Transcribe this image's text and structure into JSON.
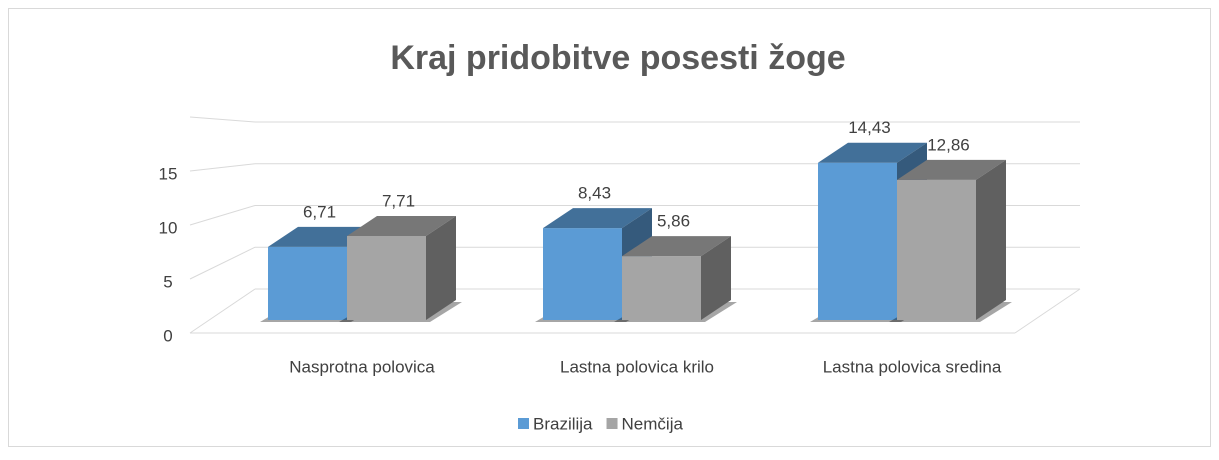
{
  "chart_data": {
    "type": "bar3d",
    "title": "Kraj pridobitve posesti žoge",
    "categories": [
      "Nasprotna polovica",
      "Lastna polovica krilo",
      "Lastna polovica sredina"
    ],
    "series": [
      {
        "name": "Brazilija",
        "color": "#5b9bd5",
        "values": [
          6.71,
          8.43,
          14.43
        ],
        "value_labels": [
          "6,71",
          "8,43",
          "14,43"
        ]
      },
      {
        "name": "Nemčija",
        "color": "#a5a5a5",
        "values": [
          7.71,
          5.86,
          12.86
        ],
        "value_labels": [
          "7,71",
          "5,86",
          "12,86"
        ]
      }
    ],
    "ylim": [
      0,
      20
    ],
    "yticks": [
      0,
      5,
      10,
      15
    ],
    "grid": true,
    "legend": "bottom"
  }
}
